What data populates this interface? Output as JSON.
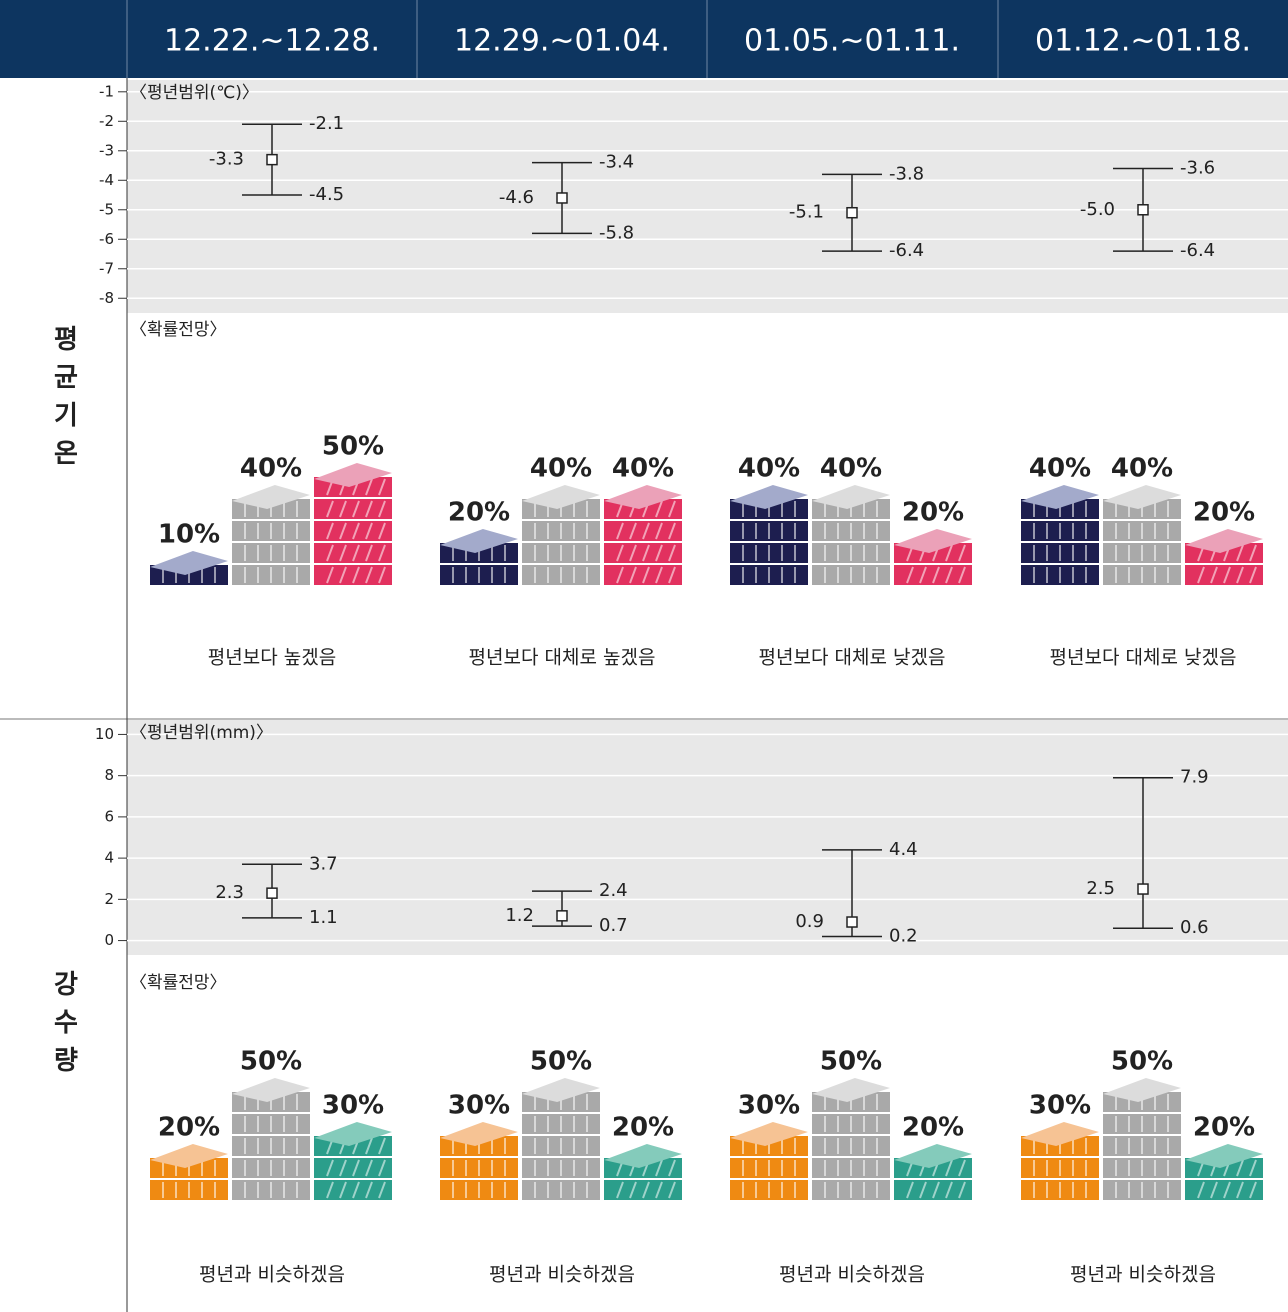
{
  "header": {
    "periods": [
      "12.22.~12.28.",
      "12.29.~01.04.",
      "01.05.~01.11.",
      "01.12.~01.18."
    ]
  },
  "sections": [
    {
      "title": "평균기온",
      "range_label": "〈평년범위(℃)〉",
      "ylim": [
        -8.5,
        -0.6
      ],
      "yticks": [
        -1,
        -2,
        -3,
        -4,
        -5,
        -6,
        -7,
        -8
      ],
      "ranges": [
        {
          "values": [
            -4.5,
            -3.3,
            -2.1
          ]
        },
        {
          "values": [
            -5.8,
            -4.6,
            -3.4
          ]
        },
        {
          "values": [
            -6.4,
            -5.1,
            -3.8
          ]
        },
        {
          "values": [
            -6.4,
            -5,
            -3.6
          ],
          "value_labels": [
            "-6.4",
            "-5.0",
            "-3.6"
          ]
        }
      ],
      "probability_label": "〈확률전망〉",
      "colors": [
        {
          "front": "#1d1e4f",
          "top": "#a3aacb"
        },
        {
          "front": "#a9a9a9",
          "top": "#dcdcdc"
        },
        {
          "front": "#e2315f",
          "top": "#eba1b8"
        }
      ],
      "probabilities": [
        {
          "values": [
            10,
            40,
            50
          ],
          "value_labels": [
            "10%",
            "40%",
            "50%"
          ]
        },
        {
          "values": [
            20,
            40,
            40
          ],
          "value_labels": [
            "20%",
            "40%",
            "40%"
          ]
        },
        {
          "values": [
            40,
            40,
            20
          ],
          "value_labels": [
            "40%",
            "40%",
            "20%"
          ]
        },
        {
          "values": [
            40,
            40,
            20
          ],
          "value_labels": [
            "40%",
            "40%",
            "20%"
          ]
        }
      ],
      "outlooks": [
        "평년보다 높겠음",
        "평년보다 대체로 높겠음",
        "평년보다 대체로 낮겠음",
        "평년보다 대체로 낮겠음"
      ]
    },
    {
      "title": "강수량",
      "range_label": "〈평년범위(mm)〉",
      "ylim": [
        -0.7,
        10.7
      ],
      "yticks": [
        0,
        2,
        4,
        6,
        8,
        10
      ],
      "ranges": [
        {
          "values": [
            1.1,
            2.3,
            3.7
          ]
        },
        {
          "values": [
            0.7,
            1.2,
            2.4
          ]
        },
        {
          "values": [
            0.2,
            0.9,
            4.4
          ]
        },
        {
          "values": [
            0.6,
            2.5,
            7.9
          ]
        }
      ],
      "probability_label": "〈확률전망〉",
      "colors": [
        {
          "front": "#ef8a12",
          "top": "#f6c394"
        },
        {
          "front": "#a9a9a9",
          "top": "#dcdcdc"
        },
        {
          "front": "#2b9e8b",
          "top": "#84cbbb"
        }
      ],
      "probabilities": [
        {
          "values": [
            20,
            50,
            30
          ],
          "value_labels": [
            "20%",
            "50%",
            "30%"
          ]
        },
        {
          "values": [
            30,
            50,
            20
          ],
          "value_labels": [
            "30%",
            "50%",
            "20%"
          ]
        },
        {
          "values": [
            30,
            50,
            20
          ],
          "value_labels": [
            "30%",
            "50%",
            "20%"
          ]
        },
        {
          "values": [
            30,
            50,
            20
          ],
          "value_labels": [
            "30%",
            "50%",
            "20%"
          ]
        }
      ],
      "outlooks": [
        "평년과 비슷하겠음",
        "평년과 비슷하겠음",
        "평년과 비슷하겠음",
        "평년과 비슷하겠음"
      ]
    }
  ]
}
